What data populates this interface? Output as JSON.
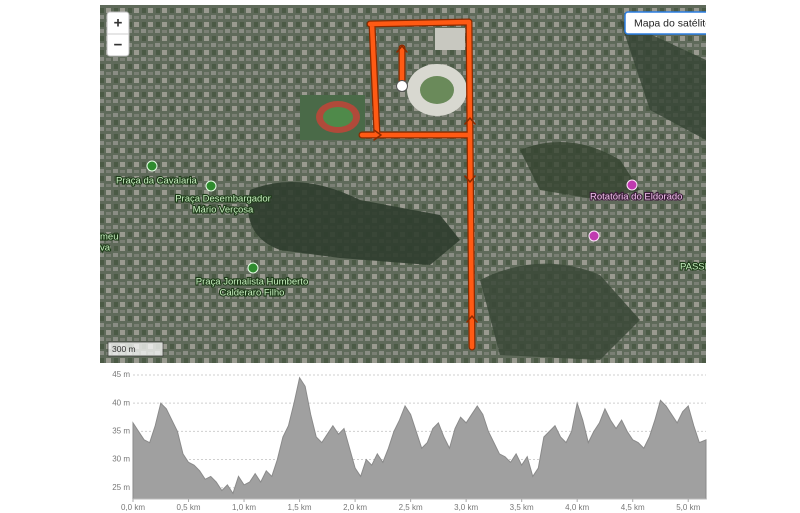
{
  "map": {
    "zoom_in": "+",
    "zoom_out": "−",
    "layer_button": "Mapa do satélite",
    "scale": "300 m",
    "labels": [
      {
        "lines": [
          "Praça da Cavalaria"
        ]
      },
      {
        "lines": [
          "Praça Desembargador",
          "Mário Verçosa"
        ]
      },
      {
        "lines": [
          "meu",
          "va"
        ]
      },
      {
        "lines": [
          "Praça Jornalista Humberto",
          "Calderaro Filho"
        ]
      },
      {
        "lines": [
          "Rotatória do Eldorado"
        ]
      },
      {
        "lines": [
          "PASSE"
        ]
      }
    ]
  },
  "chart_data": {
    "type": "area",
    "x": [
      0.0,
      0.05,
      0.1,
      0.15,
      0.2,
      0.25,
      0.3,
      0.4,
      0.45,
      0.5,
      0.55,
      0.6,
      0.65,
      0.7,
      0.75,
      0.8,
      0.85,
      0.9,
      0.95,
      1.0,
      1.05,
      1.1,
      1.15,
      1.2,
      1.25,
      1.3,
      1.35,
      1.4,
      1.45,
      1.5,
      1.55,
      1.6,
      1.65,
      1.7,
      1.75,
      1.8,
      1.85,
      1.9,
      1.95,
      2.0,
      2.05,
      2.1,
      2.15,
      2.2,
      2.25,
      2.3,
      2.35,
      2.4,
      2.45,
      2.5,
      2.55,
      2.6,
      2.65,
      2.7,
      2.75,
      2.8,
      2.85,
      2.9,
      2.95,
      3.0,
      3.05,
      3.1,
      3.15,
      3.2,
      3.25,
      3.3,
      3.35,
      3.4,
      3.45,
      3.5,
      3.55,
      3.6,
      3.65,
      3.7,
      3.75,
      3.8,
      3.85,
      3.9,
      3.95,
      4.0,
      4.05,
      4.1,
      4.15,
      4.2,
      4.25,
      4.3,
      4.35,
      4.4,
      4.45,
      4.5,
      4.55,
      4.6,
      4.65,
      4.7,
      4.75,
      4.8,
      4.85,
      4.9,
      4.95,
      5.0,
      5.05,
      5.1,
      5.16
    ],
    "series": [
      {
        "color": "#a0a0a0",
        "values": [
          36.5,
          35,
          33.5,
          33,
          36,
          40,
          39,
          35,
          31,
          29.5,
          29,
          28,
          26.5,
          27,
          26,
          24.5,
          25.5,
          24,
          27,
          25.5,
          26,
          27.5,
          26,
          28,
          27,
          30,
          34,
          36,
          40,
          44.5,
          43,
          38,
          34,
          33,
          34.5,
          36,
          34.5,
          35.5,
          32,
          28.5,
          27,
          30,
          29,
          31,
          29.5,
          32,
          35,
          37,
          39.5,
          38,
          35,
          32,
          33,
          35.5,
          36.5,
          34,
          32,
          35.5,
          37.5,
          36.5,
          38,
          39.5,
          38,
          35,
          33,
          31,
          30.5,
          29.5,
          31,
          29,
          30.5,
          27,
          28.5,
          34,
          35,
          36,
          34,
          33,
          35,
          40,
          37,
          33,
          35,
          36.5,
          39,
          37,
          35.5,
          37,
          35,
          33.5,
          33,
          32,
          34,
          37,
          40.5,
          39.5,
          38,
          36.5,
          38.5,
          39.5,
          36,
          33,
          33.5
        ]
      }
    ],
    "xlim": [
      0,
      5.16
    ],
    "ylim": [
      23,
      45
    ],
    "xticks": [
      {
        "value": 0,
        "label": "0,0 km"
      },
      {
        "value": 0.5,
        "label": "0,5 km"
      },
      {
        "value": 1,
        "label": "1,0 km"
      },
      {
        "value": 1.5,
        "label": "1,5 km"
      },
      {
        "value": 2,
        "label": "2,0 km"
      },
      {
        "value": 2.5,
        "label": "2,5 km"
      },
      {
        "value": 3,
        "label": "3,0 km"
      },
      {
        "value": 3.5,
        "label": "3,5 km"
      },
      {
        "value": 4,
        "label": "4,0 km"
      },
      {
        "value": 4.5,
        "label": "4,5 km"
      },
      {
        "value": 5,
        "label": "5,0 km"
      }
    ],
    "yticks": [
      {
        "value": 25,
        "label": "25 m"
      },
      {
        "value": 30,
        "label": "30 m"
      },
      {
        "value": 35,
        "label": "35 m"
      },
      {
        "value": 40,
        "label": "40 m"
      },
      {
        "value": 45,
        "label": "45 m"
      }
    ],
    "grid": true
  }
}
